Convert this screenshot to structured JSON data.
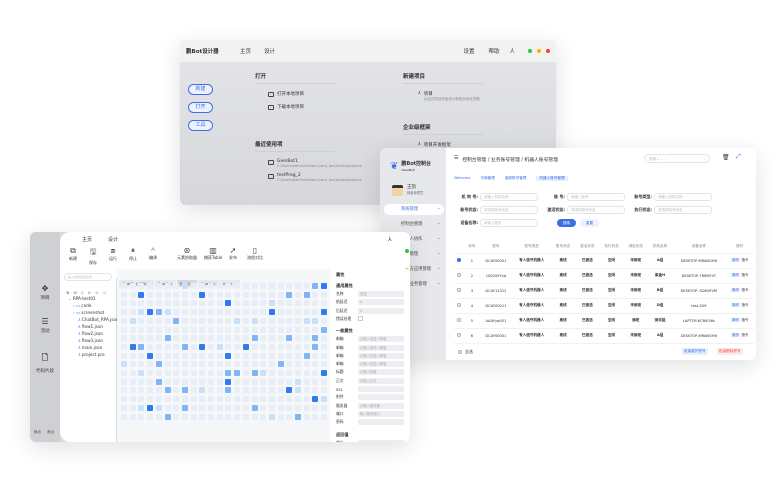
{
  "colors": {
    "accent": "#3b6fe8",
    "danger": "#f04d4d",
    "green": "#2bc840",
    "yellow": "#f7b500",
    "red": "#f44336"
  },
  "designer": {
    "title": "鹏Bot设计器",
    "nav": [
      "主页",
      "设计"
    ],
    "right": [
      "设置",
      "帮助",
      "人"
    ],
    "buttons": [
      "新建",
      "打开",
      "工具"
    ],
    "open": {
      "title": "打开",
      "items": [
        "打开本地项目",
        "下载本地项目"
      ]
    },
    "recent": {
      "title": "最近使用项",
      "items": [
        {
          "name": "GienBot1",
          "path": "C:\\Users\\Administrator\\.seco_rpa\\studio\\projects"
        },
        {
          "name": "testProg_2",
          "path": "C:\\Users\\Administrator\\.seco_rpa\\studio\\projects"
        }
      ]
    },
    "new_project": {
      "title": "新建项目",
      "item": "项目",
      "desc": "从空白项目开始设计新的自动化流程"
    },
    "framework": {
      "title": "企业级框架",
      "item": "项目开发框架",
      "desc": "通过项目开发框架创建项目"
    }
  },
  "console": {
    "logo": "鹏Bot控制台",
    "logo_sub": "GienBot",
    "user": {
      "name": "王凯",
      "role": "超级管理员"
    },
    "menu": [
      "系统管理",
      "控制台管理",
      "机器人协作",
      "设备管理",
      "第三方应用管理",
      "平台业务管理"
    ],
    "breadcrumb": "控制台管理 / 业务账号管理 / 机器人账号管理",
    "search_placeholder": "请输入......",
    "tabs": [
      "Welcome",
      "字典管理",
      "客服账号管理",
      "机器人账号管理"
    ],
    "filters": [
      {
        "label": "机 构 号:",
        "ph": "请输入机构名称"
      },
      {
        "label": "账  号:",
        "ph": "请输入账号"
      },
      {
        "label": "账号类型:",
        "ph": "请输入机构名称"
      },
      {
        "label": "账号状态:",
        "ph": "请选择账号状态"
      },
      {
        "label": "激活状态:",
        "ph": "请选择账号状态"
      },
      {
        "label": "执行状态:",
        "ph": "请选择账号状态"
      },
      {
        "label": "设备名称:",
        "ph": "请输入账号"
      }
    ],
    "search_btn": "搜索",
    "reset_btn": "重置",
    "columns": [
      "序号",
      "账号",
      "账号类型",
      "账号状态",
      "激活状态",
      "执行状态",
      "绑定状态",
      "机构名称",
      "设备名称",
      "操作"
    ],
    "rows": [
      [
        "1",
        "DCAY00001",
        "有人值守机器人",
        "离线",
        "已激活",
        "空闲",
        "未绑定",
        "A组",
        "DESKTOP-MRANOH6"
      ],
      [
        "2",
        "100200Yyq",
        "有人值守机器人",
        "离线",
        "已激活",
        "空闲",
        "未绑定",
        "紫金H",
        "DESKTOP-7R6MF4T"
      ],
      [
        "3",
        "DCAY12312",
        "有人值守机器人",
        "离线",
        "已激活",
        "空闲",
        "未绑定",
        "B组",
        "DESKTOP- SD639VM"
      ],
      [
        "4",
        "DCAY00011",
        "有人值守机器人",
        "离线",
        "已激活",
        "空闲",
        "未绑定",
        "D组",
        "test-S09"
      ],
      [
        "5",
        "AAAYyq001",
        "有人值守机器人",
        "离线",
        "已激活",
        "空闲",
        "绑定",
        "测试组",
        "LAPTOP-KCRIE56s"
      ],
      [
        "6",
        "DCAY00001",
        "有人值守机器人",
        "离线",
        "已激活",
        "空闲",
        "未绑定",
        "A组",
        "DESKTOP-MRANOH6"
      ]
    ],
    "row_ops": [
      "操作",
      "指令"
    ],
    "checked_row": 0,
    "select_all": "全选",
    "batch_edit": "批量维护账号",
    "batch_delete": "批量删除账号"
  },
  "ide": {
    "nav": [
      "主页",
      "设计"
    ],
    "toolbar": [
      "新建",
      "保存",
      "运行",
      "停止",
      "编译",
      "元素拾取器",
      "捕获Table",
      "发布",
      "流程对比"
    ],
    "side": [
      "项目",
      "活动",
      "代码片段"
    ],
    "bottom": [
      "输出",
      "断点"
    ],
    "search_placeholder": "输入搜索项目名称",
    "tree": [
      "RPA-test01",
      "code",
      "screenshot",
      "ChatBot_RPA.json",
      "flow1.json",
      "flow2.json",
      "flow3.json",
      "main.json",
      "project.pro"
    ],
    "file_tabs": [
      "ChatBot_RPA",
      "flow1",
      "flow2",
      "flow3",
      "main"
    ],
    "props": {
      "title": "属性",
      "general": "通用属性",
      "general_rows": [
        [
          "名称",
          "发送"
        ],
        [
          "前延迟",
          "0"
        ],
        [
          "后延迟",
          "0"
        ],
        [
          "错误处理",
          ""
        ]
      ],
      "common": "一般属性",
      "common_rows": [
        [
          "邮箱",
          "请输入发送人邮箱"
        ],
        [
          "邮箱",
          "请输入收件人邮箱"
        ],
        [
          "邮箱",
          "请输入抄送人邮箱"
        ],
        [
          "邮箱",
          "请输入密送人邮箱"
        ],
        [
          "标题",
          "请输入标题"
        ],
        [
          "正文",
          "请输入正文"
        ],
        [
          "SSL",
          ""
        ],
        [
          "附件",
          ""
        ],
        [
          "服务器",
          "请输入服务器"
        ],
        [
          "端口",
          "输入服务端口"
        ],
        [
          "密码",
          ""
        ]
      ],
      "ret": "返回值",
      "ret_rows": [
        [
          "输出",
          ""
        ]
      ]
    }
  }
}
